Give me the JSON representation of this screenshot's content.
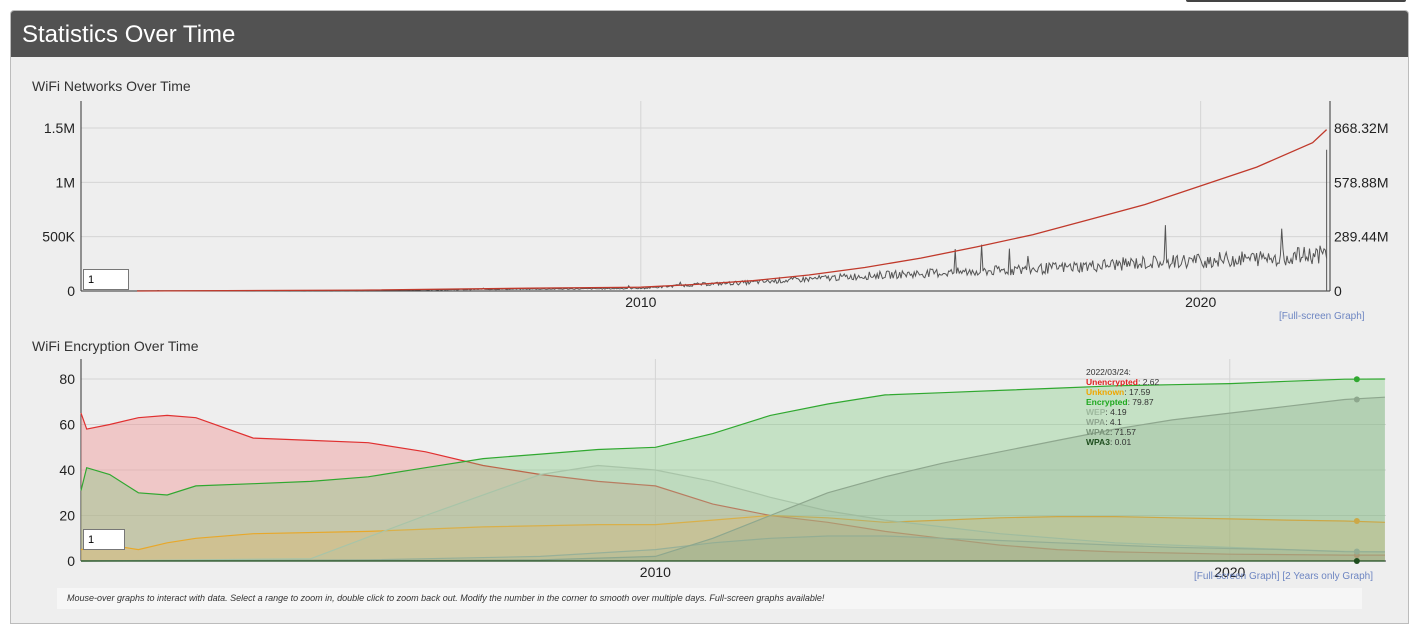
{
  "panel": {
    "title": "Statistics Over Time"
  },
  "links": {
    "fullscreen": "[Full-screen Graph]",
    "two_years": "[2 Years only Graph]"
  },
  "footer_note": "Mouse-over graphs to interact with data. Select a range to zoom in, double click to zoom back out. Modify the number in the corner to smooth over multiple days. Full-screen graphs available!",
  "chart_data": [
    {
      "type": "line",
      "title": "WiFi Networks Over Time",
      "smoothing_value": "1",
      "x_ticks": [
        "2010",
        "2020"
      ],
      "y_left_ticks": [
        "0",
        "500K",
        "1M",
        "1.5M"
      ],
      "y_right_ticks": [
        "0",
        "289.44M",
        "578.88M",
        "868.32M"
      ],
      "y_left_range": [
        0,
        1500000
      ],
      "y_right_range": [
        0,
        868320000
      ],
      "grid": true,
      "series": [
        {
          "axis": "left",
          "color": "#555555",
          "x": [
            2001.0,
            2005.0,
            2007.0,
            2009.0,
            2010.0,
            2011.0,
            2012.0,
            2013.0,
            2014.0,
            2015.0,
            2016.0,
            2017.0,
            2018.0,
            2019.0,
            2020.0,
            2021.0,
            2022.0,
            2022.25
          ],
          "values": [
            2000,
            4000,
            15000,
            20000,
            25000,
            60000,
            80000,
            110000,
            140000,
            160000,
            180000,
            200000,
            230000,
            260000,
            280000,
            300000,
            330000,
            340000
          ]
        },
        {
          "axis": "right",
          "color": "#c0392b",
          "x": [
            2001.0,
            2005.0,
            2008.0,
            2010.0,
            2011.0,
            2012.0,
            2013.0,
            2014.0,
            2015.0,
            2016.0,
            2017.0,
            2018.0,
            2019.0,
            2020.0,
            2021.0,
            2022.0,
            2022.25
          ],
          "values": [
            0,
            5000000,
            15000000,
            20000000,
            35000000,
            55000000,
            85000000,
            125000000,
            175000000,
            235000000,
            300000000,
            380000000,
            460000000,
            560000000,
            660000000,
            790000000,
            860000000
          ]
        }
      ]
    },
    {
      "type": "area",
      "title": "WiFi Encryption Over Time",
      "smoothing_value": "1",
      "x_ticks": [
        "2010",
        "2020"
      ],
      "y_ticks": [
        "0",
        "20",
        "40",
        "60",
        "80"
      ],
      "ylim": [
        0,
        85
      ],
      "grid": true,
      "legend": {
        "position": "top-right",
        "date": "2022/03/24:",
        "entries": [
          {
            "name": "Unencrypted",
            "value": "2.62",
            "color": "#e02020"
          },
          {
            "name": "Unknown",
            "value": "17.59",
            "color": "#f0a500"
          },
          {
            "name": "Encrypted",
            "value": "79.87",
            "color": "#1ea81e"
          },
          {
            "name": "WEP",
            "value": "4.19",
            "color": "#9db89d"
          },
          {
            "name": "WPA",
            "value": "4.1",
            "color": "#8fa58f"
          },
          {
            "name": "WPA2",
            "value": "71.57",
            "color": "#7a947a"
          },
          {
            "name": "WPA3",
            "value": "0.01",
            "color": "#1e4d1e"
          }
        ]
      },
      "series": [
        {
          "name": "Unencrypted",
          "color": "#e03030",
          "fill": "rgba(240,150,150,0.45)",
          "x": [
            2000.0,
            2000.1,
            2000.5,
            2001.0,
            2001.5,
            2002.0,
            2003.0,
            2004.0,
            2005.0,
            2006.0,
            2007.0,
            2008.0,
            2009.0,
            2010.0,
            2011.0,
            2012.0,
            2013.0,
            2014.0,
            2015.0,
            2016.0,
            2017.0,
            2018.0,
            2019.0,
            2020.0,
            2021.0,
            2022.0,
            2022.7
          ],
          "values": [
            65,
            58,
            60,
            63,
            64,
            63,
            54,
            53,
            52,
            48,
            42,
            38,
            35,
            33,
            25,
            20,
            17,
            13,
            10,
            7,
            5,
            4,
            3.5,
            3,
            2.8,
            2.6,
            2.6
          ]
        },
        {
          "name": "Encrypted",
          "color": "#30a830",
          "fill": "rgba(120,200,120,0.35)",
          "x": [
            2000.0,
            2000.1,
            2000.5,
            2001.0,
            2001.5,
            2002.0,
            2003.0,
            2004.0,
            2005.0,
            2006.0,
            2007.0,
            2008.0,
            2009.0,
            2010.0,
            2011.0,
            2012.0,
            2013.0,
            2014.0,
            2015.0,
            2016.0,
            2017.0,
            2018.0,
            2019.0,
            2020.0,
            2021.0,
            2022.0,
            2022.7
          ],
          "values": [
            31,
            41,
            38,
            30,
            29,
            33,
            34,
            35,
            37,
            41,
            45,
            47,
            49,
            50,
            56,
            64,
            69,
            73,
            74,
            75,
            76,
            77,
            77.5,
            78,
            79,
            79.9,
            80
          ]
        },
        {
          "name": "Unknown",
          "color": "#e8a82a",
          "fill": "rgba(232,180,90,0.30)",
          "x": [
            2000.0,
            2000.5,
            2001.0,
            2001.5,
            2002.0,
            2003.0,
            2005.0,
            2007.0,
            2009.0,
            2010.0,
            2011.0,
            2012.0,
            2013.0,
            2014.0,
            2015.0,
            2016.0,
            2017.0,
            2018.0,
            2019.0,
            2020.0,
            2021.0,
            2022.0,
            2022.7
          ],
          "values": [
            5,
            7,
            5,
            8,
            10,
            12,
            13,
            15,
            16,
            16,
            18,
            20,
            19,
            17,
            18,
            19,
            19.5,
            19.5,
            19,
            18.5,
            18,
            17.6,
            17
          ]
        },
        {
          "name": "WEP",
          "color": "#a8c4a8",
          "fill": "rgba(170,200,170,0.25)",
          "x": [
            2000.0,
            2004.0,
            2006.0,
            2008.0,
            2009.0,
            2010.0,
            2011.0,
            2012.0,
            2013.0,
            2014.0,
            2015.0,
            2016.0,
            2017.0,
            2018.0,
            2019.0,
            2020.0,
            2021.0,
            2022.0,
            2022.7
          ],
          "values": [
            0,
            1,
            20,
            38,
            42,
            40,
            35,
            28,
            22,
            18,
            15,
            12,
            10,
            8,
            7,
            6,
            5,
            4.2,
            4
          ]
        },
        {
          "name": "WPA",
          "color": "#98b098",
          "fill": "rgba(150,180,150,0.20)",
          "x": [
            2000.0,
            2005.0,
            2008.0,
            2010.0,
            2011.0,
            2012.0,
            2013.0,
            2014.0,
            2015.0,
            2016.0,
            2017.0,
            2018.0,
            2019.0,
            2020.0,
            2021.0,
            2022.0,
            2022.7
          ],
          "values": [
            0,
            0.5,
            2,
            5,
            8,
            10,
            11,
            11,
            10,
            9,
            8,
            7,
            6,
            5.5,
            5,
            4.1,
            4
          ]
        },
        {
          "name": "WPA2",
          "color": "#8ea78e",
          "fill": "rgba(140,170,140,0.30)",
          "x": [
            2000.0,
            2006.0,
            2008.0,
            2010.0,
            2011.0,
            2012.0,
            2013.0,
            2014.0,
            2015.0,
            2016.0,
            2017.0,
            2018.0,
            2019.0,
            2020.0,
            2021.0,
            2022.0,
            2022.7
          ],
          "values": [
            0,
            0.2,
            0.5,
            2,
            10,
            20,
            30,
            37,
            43,
            48,
            53,
            58,
            62,
            65,
            68,
            71,
            72
          ]
        },
        {
          "name": "WPA3",
          "color": "#1e4d1e",
          "fill": "none",
          "x": [
            2000.0,
            2019.0,
            2020.0,
            2022.0,
            2022.7
          ],
          "values": [
            0,
            0,
            0.005,
            0.01,
            0.01
          ]
        }
      ]
    }
  ]
}
